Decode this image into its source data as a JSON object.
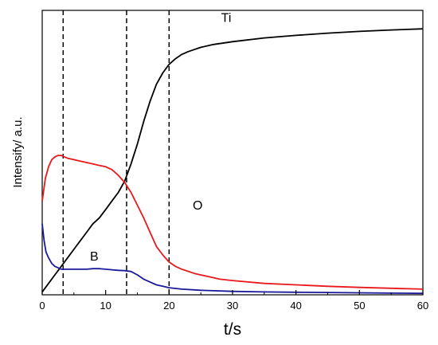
{
  "chart_data": {
    "type": "line",
    "title": "",
    "xlabel": "t/s",
    "ylabel": "Intensify/ a.u.",
    "xlim": [
      0,
      60
    ],
    "ylim": [
      0,
      100
    ],
    "x_ticks": [
      0,
      10,
      20,
      30,
      40,
      50,
      60
    ],
    "y_ticks_shown": false,
    "grid": false,
    "legend": "none (series labelled inline)",
    "reference_lines_x": [
      3.3,
      13.3,
      20
    ],
    "reference_line_style": "dashed",
    "series": [
      {
        "name": "Ti",
        "color": "#000000",
        "x": [
          0,
          1,
          2,
          3,
          4,
          5,
          6,
          7,
          8,
          9,
          10,
          11,
          12,
          13,
          14,
          15,
          16,
          17,
          18,
          19,
          20,
          21,
          22,
          23,
          25,
          27,
          30,
          35,
          40,
          45,
          50,
          55,
          60
        ],
        "y": [
          1,
          4,
          7,
          10,
          13,
          16,
          19,
          22,
          25,
          27,
          30,
          33,
          36,
          40,
          46,
          53,
          61,
          68,
          74,
          78,
          81,
          83,
          84.5,
          85.5,
          87,
          88,
          89,
          90.3,
          91.2,
          92,
          92.6,
          93.1,
          93.5
        ]
      },
      {
        "name": "O",
        "color": "#e8191c",
        "x": [
          0,
          0.5,
          1,
          1.5,
          2,
          2.5,
          3,
          3.5,
          4,
          5,
          6,
          7,
          8,
          9,
          10,
          11,
          12,
          13,
          14,
          15,
          16,
          17,
          18,
          19,
          20,
          21,
          22,
          24,
          26,
          28,
          30,
          35,
          40,
          45,
          50,
          55,
          60
        ],
        "y": [
          33,
          41,
          45,
          47.5,
          48.5,
          49,
          49,
          48.5,
          48,
          47.5,
          47,
          46.5,
          46,
          45.5,
          45,
          44,
          42,
          39.5,
          36,
          31.5,
          27,
          22,
          17,
          14,
          11.5,
          10,
          9,
          7.5,
          6.5,
          5.5,
          5,
          4,
          3.5,
          3,
          2.6,
          2.3,
          2
        ]
      },
      {
        "name": "B",
        "color": "#1a1a9a",
        "x": [
          0,
          0.3,
          0.6,
          1,
          1.5,
          2,
          2.5,
          3,
          4,
          5,
          6,
          7,
          8,
          9,
          10,
          11,
          12,
          13,
          14,
          15,
          16,
          17,
          18,
          19,
          20,
          22,
          25,
          30,
          35,
          40,
          45,
          50,
          55,
          60
        ],
        "y": [
          25,
          19,
          15,
          13,
          11,
          10,
          9.5,
          9,
          9,
          9,
          9,
          9,
          9.2,
          9.2,
          9,
          8.8,
          8.6,
          8.5,
          8.2,
          7,
          5.5,
          4.5,
          3.5,
          3,
          2.5,
          2,
          1.6,
          1.2,
          1,
          0.9,
          0.8,
          0.7,
          0.6,
          0.5
        ]
      }
    ],
    "annotations": [
      {
        "text": "Ti",
        "x": 29,
        "y": 96
      },
      {
        "text": "O",
        "x": 24.5,
        "y": 30
      },
      {
        "text": "B",
        "x": 8.2,
        "y": 12
      }
    ]
  }
}
